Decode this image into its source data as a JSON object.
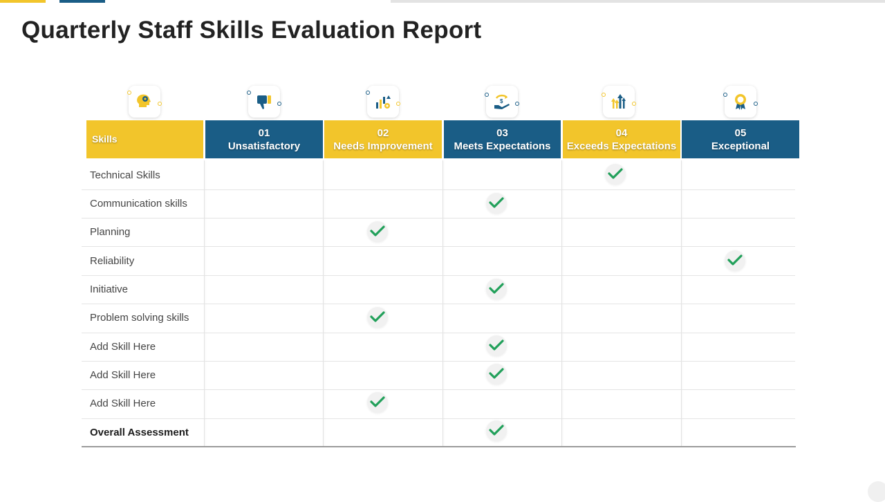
{
  "title": "Quarterly Staff Skills Evaluation Report",
  "colors": {
    "blue": "#1a5d86",
    "yellow": "#f2c52b",
    "check_green": "#21a05a"
  },
  "table": {
    "skills_header": "Skills",
    "levels": [
      {
        "number": "01",
        "label": "Unsatisfactory",
        "color": "blue",
        "icon": "thumbs-down-icon"
      },
      {
        "number": "02",
        "label": "Needs Improvement",
        "color": "yellow",
        "icon": "chart-gear-icon"
      },
      {
        "number": "03",
        "label": "Meets Expectations",
        "color": "blue",
        "icon": "hand-money-icon"
      },
      {
        "number": "04",
        "label": "Exceeds Expectations",
        "color": "yellow",
        "icon": "growth-arrows-icon"
      },
      {
        "number": "05",
        "label": "Exceptional",
        "color": "blue",
        "icon": "award-badge-icon"
      }
    ],
    "skills_icon": "head-gear-icon",
    "rows": [
      {
        "skill": "Technical Skills",
        "level": 4
      },
      {
        "skill": "Communication skills",
        "level": 3
      },
      {
        "skill": "Planning",
        "level": 2
      },
      {
        "skill": "Reliability",
        "level": 5
      },
      {
        "skill": "Initiative",
        "level": 3
      },
      {
        "skill": "Problem solving skills",
        "level": 2
      },
      {
        "skill": "Add Skill Here",
        "level": 3
      },
      {
        "skill": "Add Skill Here",
        "level": 3
      },
      {
        "skill": "Add Skill Here",
        "level": 2
      },
      {
        "skill": "Overall Assessment",
        "level": 3,
        "bold": true
      }
    ]
  }
}
